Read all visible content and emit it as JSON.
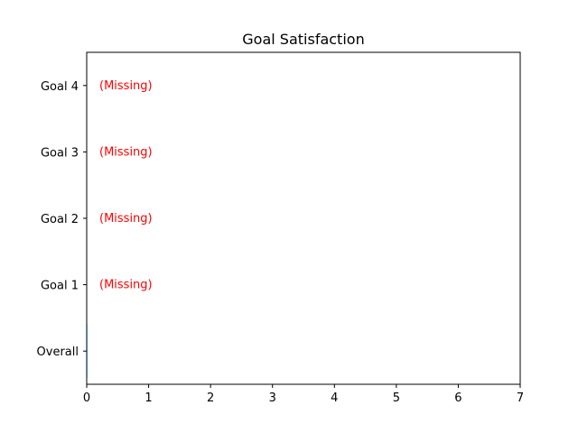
{
  "chart_data": {
    "type": "bar",
    "orientation": "horizontal",
    "title": "Goal Satisfaction",
    "xlabel": "",
    "ylabel": "",
    "categories": [
      "Overall",
      "Goal 1",
      "Goal 2",
      "Goal 3",
      "Goal 4"
    ],
    "values": [
      0,
      null,
      null,
      null,
      null
    ],
    "annotations": [
      {
        "category": "Goal 1",
        "text": "(Missing)"
      },
      {
        "category": "Goal 2",
        "text": "(Missing)"
      },
      {
        "category": "Goal 3",
        "text": "(Missing)"
      },
      {
        "category": "Goal 4",
        "text": "(Missing)"
      }
    ],
    "xlim": [
      0,
      7
    ],
    "xticks": [
      0,
      1,
      2,
      3,
      4,
      5,
      6,
      7
    ],
    "grid": false,
    "colors": {
      "missing_text": "#ff0000",
      "axis": "#000000",
      "bar": "#1f77b4"
    }
  }
}
